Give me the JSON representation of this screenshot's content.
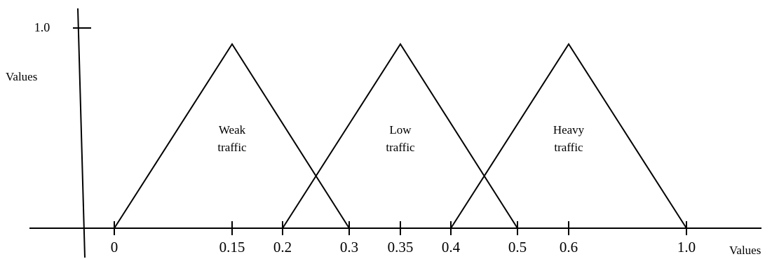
{
  "chart_data": {
    "type": "line",
    "title": "",
    "xlabel": "Values",
    "ylabel": "Values",
    "x_ticks": [
      "0",
      "0.15",
      "0.2",
      "0.3",
      "0.35",
      "0.4",
      "0.5",
      "0.6",
      "1.0"
    ],
    "y_ticks": [
      "1.0"
    ],
    "grid": false,
    "series": [
      {
        "label_lines": [
          "Weak",
          "traffic"
        ],
        "x": [
          "0",
          "0.15",
          "0.3"
        ],
        "y": [
          0,
          1,
          0
        ]
      },
      {
        "label_lines": [
          "Low",
          "traffic"
        ],
        "x": [
          "0.2",
          "0.35",
          "0.5"
        ],
        "y": [
          0,
          1,
          0
        ]
      },
      {
        "label_lines": [
          "Heavy",
          "traffic"
        ],
        "x": [
          "0.4",
          "0.6",
          "1.0"
        ],
        "y": [
          0,
          1,
          0
        ]
      }
    ]
  }
}
